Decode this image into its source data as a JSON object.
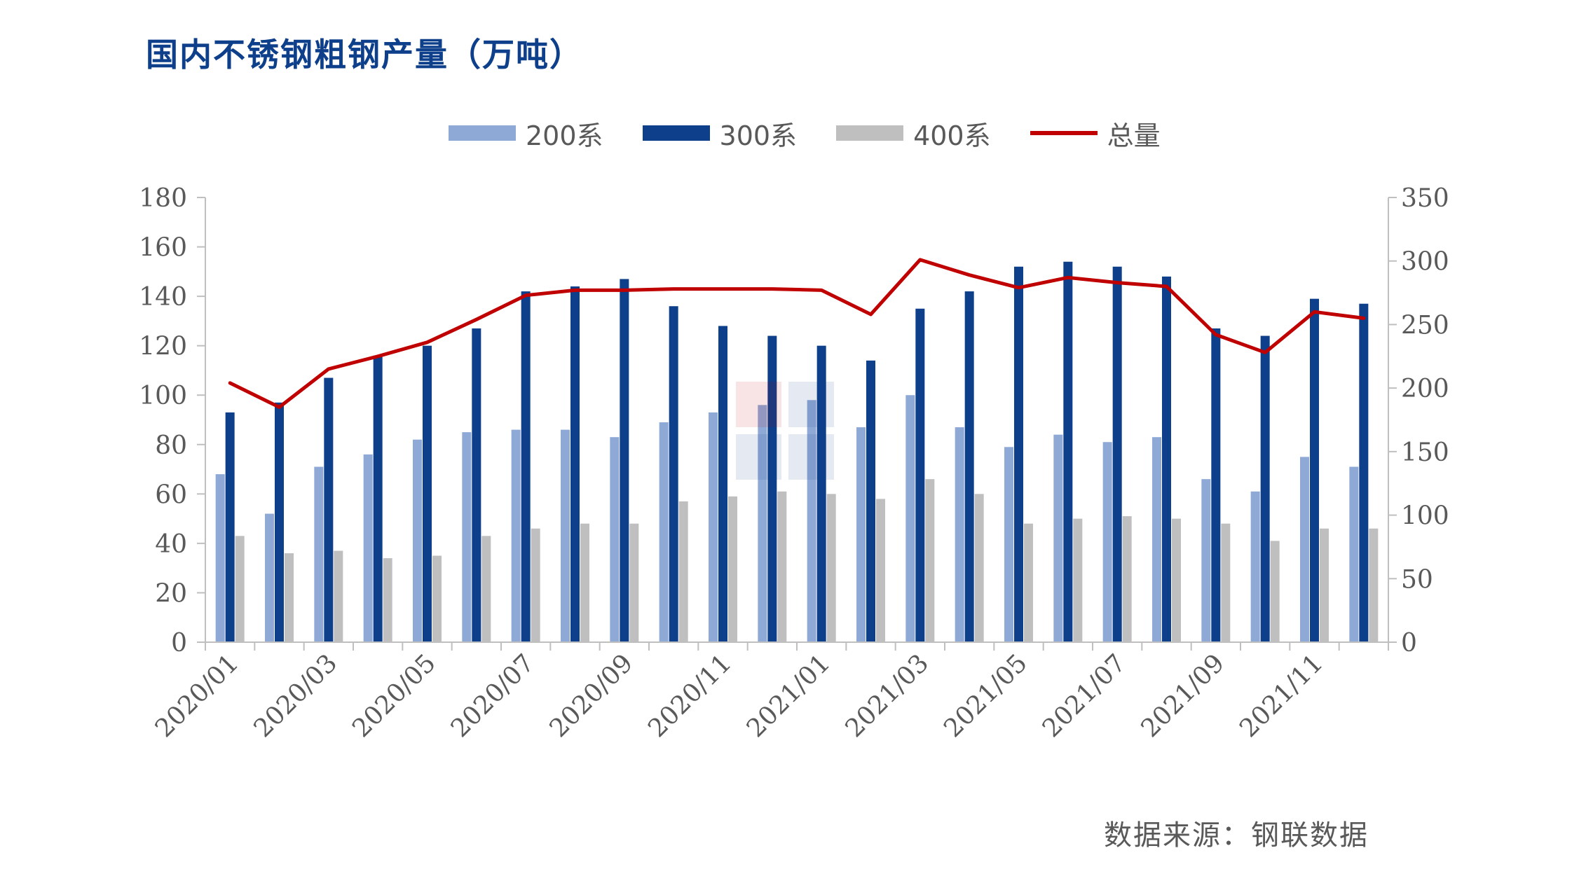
{
  "title": "国内不锈钢粗钢产量（万吨）",
  "source": "数据来源：钢联数据",
  "chart_data": {
    "type": "bar",
    "categories": [
      "2020/01",
      "2020/02",
      "2020/03",
      "2020/04",
      "2020/05",
      "2020/06",
      "2020/07",
      "2020/08",
      "2020/09",
      "2020/10",
      "2020/11",
      "2020/12",
      "2021/01",
      "2021/02",
      "2021/03",
      "2021/04",
      "2021/05",
      "2021/06",
      "2021/07",
      "2021/08",
      "2021/09",
      "2021/10",
      "2021/11",
      "2021/12"
    ],
    "x_tick_labels": [
      "2020/01",
      "2020/03",
      "2020/05",
      "2020/07",
      "2020/09",
      "2020/11",
      "2021/01",
      "2021/03",
      "2021/05",
      "2021/07",
      "2021/09",
      "2021/11"
    ],
    "series": [
      {
        "name": "200系",
        "type": "bar",
        "axis": "left",
        "color": "#8ea9d6",
        "values": [
          68,
          52,
          71,
          76,
          82,
          85,
          86,
          86,
          83,
          89,
          93,
          96,
          98,
          87,
          100,
          87,
          79,
          84,
          81,
          83,
          66,
          61,
          75,
          71
        ]
      },
      {
        "name": "300系",
        "type": "bar",
        "axis": "left",
        "color": "#0d3f8a",
        "values": [
          93,
          97,
          107,
          116,
          120,
          127,
          142,
          144,
          147,
          136,
          128,
          124,
          120,
          114,
          135,
          142,
          152,
          154,
          152,
          148,
          127,
          124,
          139,
          137
        ]
      },
      {
        "name": "400系",
        "type": "bar",
        "axis": "left",
        "color": "#bfbfbf",
        "values": [
          43,
          36,
          37,
          34,
          35,
          43,
          46,
          48,
          48,
          57,
          59,
          61,
          60,
          58,
          66,
          60,
          48,
          50,
          51,
          50,
          48,
          41,
          46,
          46
        ]
      },
      {
        "name": "总量",
        "type": "line",
        "axis": "right",
        "color": "#c00000",
        "values": [
          204,
          185,
          215,
          225,
          236,
          254,
          273,
          277,
          277,
          278,
          278,
          278,
          277,
          258,
          301,
          289,
          279,
          287,
          283,
          280,
          242,
          228,
          260,
          255
        ]
      }
    ],
    "y_left": {
      "min": 0,
      "max": 180,
      "ticks": [
        0,
        20,
        40,
        60,
        80,
        100,
        120,
        140,
        160,
        180
      ]
    },
    "y_right": {
      "min": 0,
      "max": 350,
      "ticks": [
        0,
        50,
        100,
        150,
        200,
        250,
        300,
        350
      ]
    },
    "grid": false,
    "legend_position": "top-center"
  }
}
